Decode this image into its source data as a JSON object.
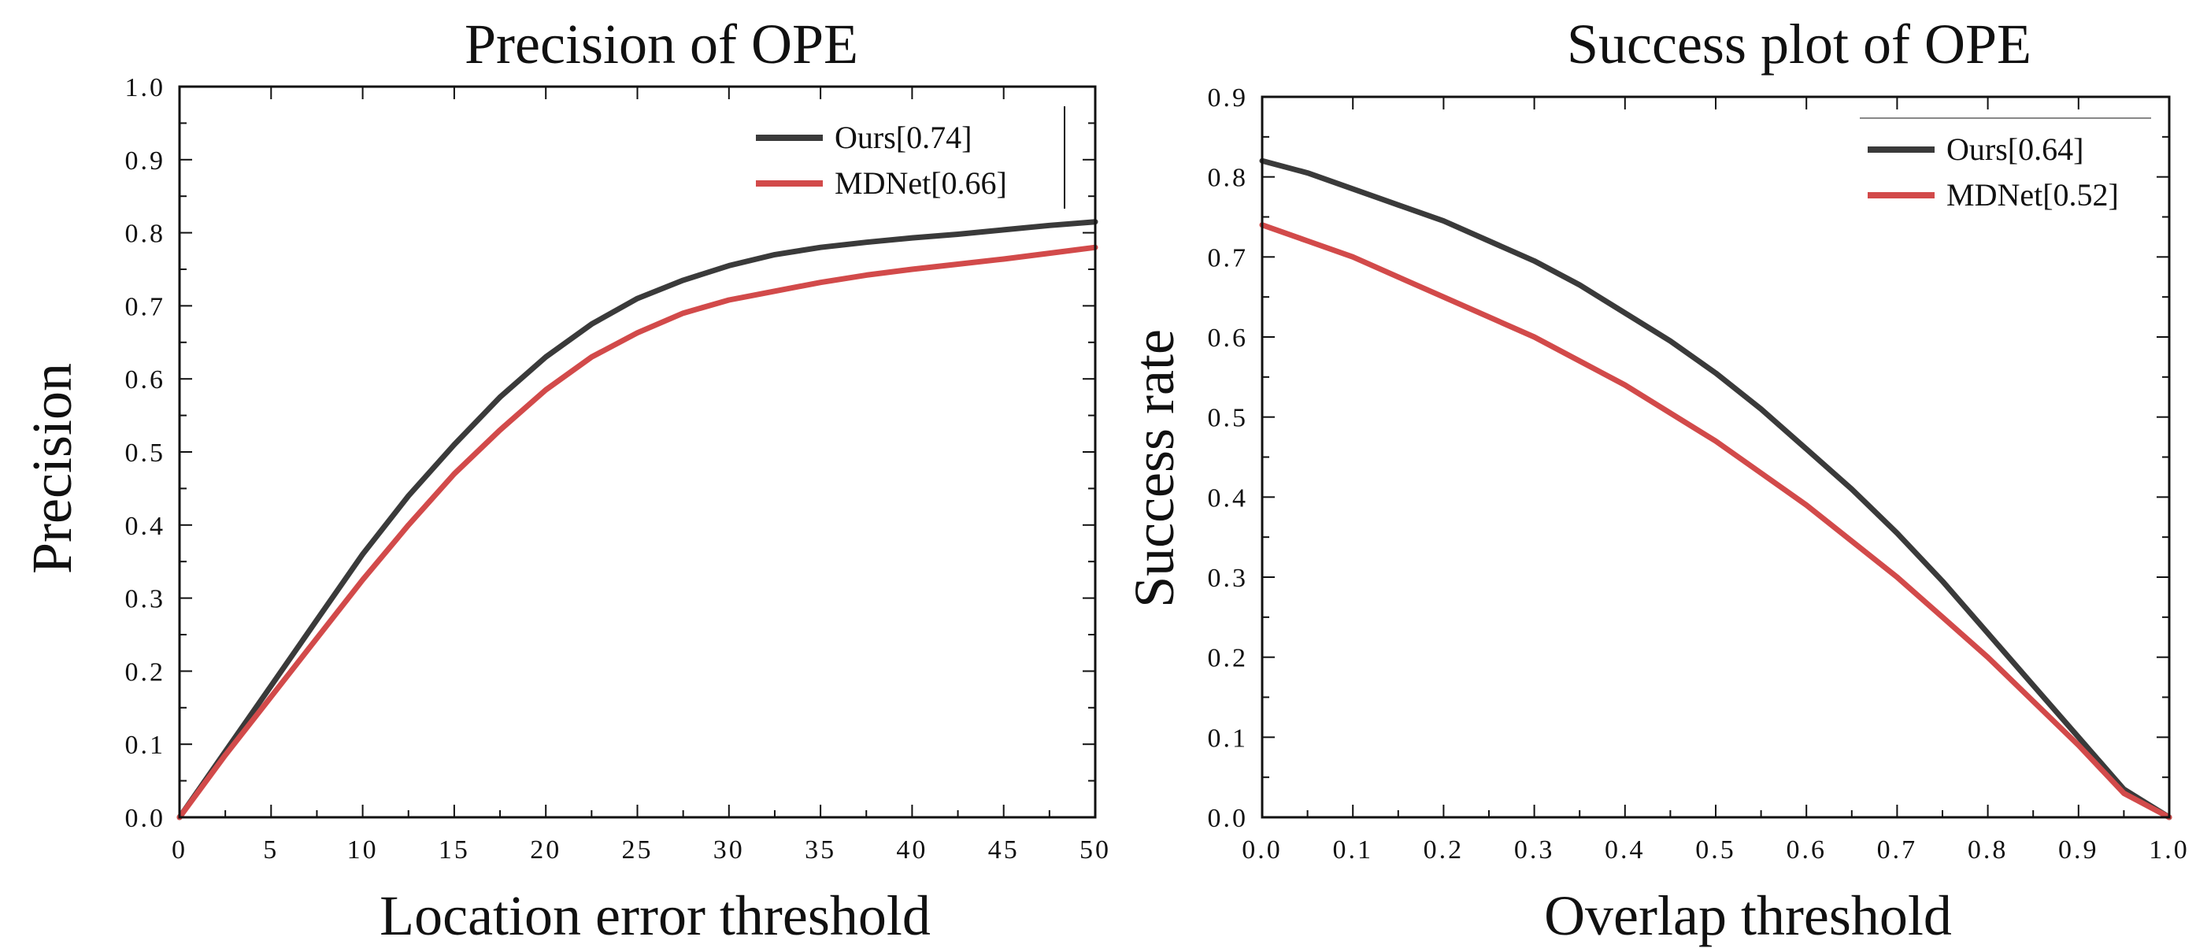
{
  "colors": {
    "ours": "#3a3a3a",
    "mdnet": "#d24a4a",
    "axis": "#111111",
    "background": "#ffffff"
  },
  "chart_data": [
    {
      "type": "line",
      "title": "Precision of OPE",
      "xlabel": "Location error threshold",
      "ylabel": "Precision",
      "xlim": [
        0,
        50
      ],
      "ylim": [
        0,
        1.0
      ],
      "x_ticks": [
        0,
        5,
        10,
        15,
        20,
        25,
        30,
        35,
        40,
        45,
        50
      ],
      "x_tick_labels": [
        "0",
        "5",
        "10",
        "15",
        "20",
        "25",
        "30",
        "35",
        "40",
        "45",
        "50"
      ],
      "y_ticks": [
        0,
        0.1,
        0.2,
        0.3,
        0.4,
        0.5,
        0.6,
        0.7,
        0.8,
        0.9,
        1.0
      ],
      "y_tick_labels": [
        "0.0",
        "0.1",
        "0.2",
        "0.3",
        "0.4",
        "0.5",
        "0.6",
        "0.7",
        "0.8",
        "0.9",
        "1.0"
      ],
      "grid": false,
      "legend_position": "top-right",
      "x": [
        0,
        2.5,
        5,
        7.5,
        10,
        12.5,
        15,
        17.5,
        20,
        22.5,
        25,
        27.5,
        30,
        32.5,
        35,
        37.5,
        40,
        42.5,
        45,
        47.5,
        50
      ],
      "series": [
        {
          "name": "Ours[0.74]",
          "color_key": "ours",
          "values": [
            0.0,
            0.09,
            0.18,
            0.27,
            0.36,
            0.44,
            0.51,
            0.575,
            0.63,
            0.675,
            0.71,
            0.735,
            0.755,
            0.77,
            0.78,
            0.787,
            0.793,
            0.798,
            0.804,
            0.81,
            0.815
          ]
        },
        {
          "name": "MDNet[0.66]",
          "color_key": "mdnet",
          "values": [
            0.0,
            0.085,
            0.165,
            0.245,
            0.325,
            0.4,
            0.47,
            0.53,
            0.585,
            0.63,
            0.663,
            0.69,
            0.708,
            0.72,
            0.732,
            0.742,
            0.75,
            0.757,
            0.764,
            0.772,
            0.78
          ]
        }
      ]
    },
    {
      "type": "line",
      "title": "Success plot of OPE",
      "xlabel": "Overlap threshold",
      "ylabel": "Success rate",
      "xlim": [
        0,
        1.0
      ],
      "ylim": [
        0,
        0.9
      ],
      "x_ticks": [
        0,
        0.1,
        0.2,
        0.3,
        0.4,
        0.5,
        0.6,
        0.7,
        0.8,
        0.9,
        1.0
      ],
      "x_tick_labels": [
        "0.0",
        "0.1",
        "0.2",
        "0.3",
        "0.4",
        "0.5",
        "0.6",
        "0.7",
        "0.8",
        "0.9",
        "1.0"
      ],
      "y_ticks": [
        0,
        0.1,
        0.2,
        0.3,
        0.4,
        0.5,
        0.6,
        0.7,
        0.8,
        0.9
      ],
      "y_tick_labels": [
        "0.0",
        "0.1",
        "0.2",
        "0.3",
        "0.4",
        "0.5",
        "0.6",
        "0.7",
        "0.8",
        "0.9"
      ],
      "grid": false,
      "legend_position": "top-right",
      "x": [
        0,
        0.05,
        0.1,
        0.15,
        0.2,
        0.25,
        0.3,
        0.35,
        0.4,
        0.45,
        0.5,
        0.55,
        0.6,
        0.65,
        0.7,
        0.75,
        0.8,
        0.85,
        0.9,
        0.95,
        1.0
      ],
      "series": [
        {
          "name": "Ours[0.64]",
          "color_key": "ours",
          "values": [
            0.82,
            0.805,
            0.785,
            0.765,
            0.745,
            0.72,
            0.695,
            0.665,
            0.63,
            0.595,
            0.555,
            0.51,
            0.46,
            0.41,
            0.355,
            0.295,
            0.23,
            0.165,
            0.1,
            0.035,
            0.0
          ]
        },
        {
          "name": "MDNet[0.52]",
          "color_key": "mdnet",
          "values": [
            0.74,
            0.72,
            0.7,
            0.675,
            0.65,
            0.625,
            0.6,
            0.57,
            0.54,
            0.505,
            0.47,
            0.43,
            0.39,
            0.345,
            0.3,
            0.25,
            0.2,
            0.145,
            0.09,
            0.03,
            0.0
          ]
        }
      ]
    }
  ]
}
